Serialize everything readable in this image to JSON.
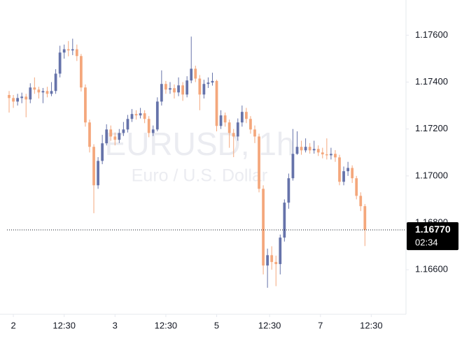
{
  "chart_data": {
    "type": "candlestick",
    "watermark": {
      "symbol": "EURUSD, 1h",
      "description": "Euro / U.S. Dollar"
    },
    "up_color": "#6673aa",
    "down_color": "#f4a77c",
    "open": [
      1.17345,
      1.17332,
      1.17317,
      1.17332,
      1.17338,
      1.17326,
      1.17377,
      1.17368,
      1.17356,
      1.17362,
      1.1735,
      1.17362,
      1.17436,
      1.17526,
      1.1754,
      1.17535,
      1.1754,
      1.17511,
      1.17377,
      1.17228,
      1.17124,
      1.1696,
      1.17064,
      1.17139,
      1.17198,
      1.17168,
      1.17154,
      1.17183,
      1.17198,
      1.17243,
      1.17264,
      1.17258,
      1.17267,
      1.17243,
      1.17183,
      1.17198,
      1.17317,
      1.17392,
      1.17368,
      1.17374,
      1.17356,
      1.17386,
      1.17347,
      1.17407,
      1.17457,
      1.17415,
      1.17347,
      1.17392,
      1.17398,
      1.17405,
      1.17213,
      1.17258,
      1.17228,
      1.17183,
      1.17168,
      1.17228,
      1.17273,
      1.17243,
      1.17198,
      1.17168,
      1.16945,
      1.16618,
      1.16662,
      1.16633,
      1.16624,
      1.16737,
      1.16886,
      1.1699,
      1.17094,
      1.17124,
      1.17109,
      1.17124,
      1.17109,
      1.17115,
      1.171,
      1.17092,
      1.17088,
      1.17094,
      1.17079,
      1.16975,
      1.1702,
      1.17034,
      1.1699,
      1.16915,
      1.16871
    ],
    "high": [
      1.17362,
      1.17345,
      1.1735,
      1.17355,
      1.1735,
      1.17395,
      1.1742,
      1.1738,
      1.17375,
      1.1738,
      1.174,
      1.17455,
      1.17555,
      1.1756,
      1.17575,
      1.17585,
      1.1756,
      1.1752,
      1.1739,
      1.1724,
      1.17135,
      1.1708,
      1.17175,
      1.1722,
      1.17215,
      1.17185,
      1.172,
      1.1723,
      1.1726,
      1.17285,
      1.1728,
      1.1729,
      1.1728,
      1.17255,
      1.17215,
      1.17335,
      1.1745,
      1.17405,
      1.174,
      1.1739,
      1.1742,
      1.174,
      1.17425,
      1.17594,
      1.1747,
      1.1743,
      1.1741,
      1.1742,
      1.1744,
      1.1741,
      1.1728,
      1.1727,
      1.1724,
      1.172,
      1.17245,
      1.173,
      1.1729,
      1.17255,
      1.17215,
      1.1718,
      1.1696,
      1.1669,
      1.167,
      1.1666,
      1.1675,
      1.169,
      1.1701,
      1.172,
      1.1719,
      1.1715,
      1.1716,
      1.1714,
      1.1715,
      1.1713,
      1.1712,
      1.1716,
      1.1712,
      1.1711,
      1.1709,
      1.1704,
      1.1706,
      1.17045,
      1.17,
      1.1693,
      1.1688
    ],
    "low": [
      1.1727,
      1.1729,
      1.173,
      1.1731,
      1.1725,
      1.1731,
      1.1735,
      1.1733,
      1.1731,
      1.17335,
      1.1734,
      1.1735,
      1.1742,
      1.175,
      1.1751,
      1.17515,
      1.1749,
      1.1736,
      1.1721,
      1.171,
      1.16841,
      1.16945,
      1.1705,
      1.1713,
      1.1715,
      1.1713,
      1.1714,
      1.1717,
      1.17185,
      1.1723,
      1.1724,
      1.17245,
      1.17225,
      1.17165,
      1.1717,
      1.1719,
      1.173,
      1.1735,
      1.1735,
      1.1733,
      1.1734,
      1.1732,
      1.17335,
      1.17395,
      1.174,
      1.1728,
      1.1733,
      1.17375,
      1.17385,
      1.1719,
      1.172,
      1.1721,
      1.1712,
      1.1708,
      1.1715,
      1.1721,
      1.17225,
      1.1718,
      1.1714,
      1.1693,
      1.1658,
      1.16523,
      1.166,
      1.1653,
      1.1658,
      1.1672,
      1.1686,
      1.1698,
      1.1709,
      1.1709,
      1.171,
      1.17095,
      1.17095,
      1.17085,
      1.17075,
      1.1707,
      1.1707,
      1.1706,
      1.1696,
      1.1696,
      1.17,
      1.1697,
      1.169,
      1.1685,
      1.16701
    ],
    "close": [
      1.17332,
      1.17317,
      1.17332,
      1.17338,
      1.17326,
      1.17377,
      1.17368,
      1.17356,
      1.17362,
      1.1735,
      1.17362,
      1.17436,
      1.17526,
      1.1754,
      1.17535,
      1.1754,
      1.17511,
      1.17377,
      1.17228,
      1.17124,
      1.1696,
      1.17064,
      1.17139,
      1.17198,
      1.17168,
      1.17154,
      1.17183,
      1.17198,
      1.17243,
      1.17264,
      1.17258,
      1.17267,
      1.17243,
      1.17183,
      1.17198,
      1.17317,
      1.17392,
      1.17368,
      1.17374,
      1.17356,
      1.17386,
      1.17347,
      1.17407,
      1.17457,
      1.17415,
      1.17347,
      1.17392,
      1.17398,
      1.17405,
      1.17213,
      1.17258,
      1.17228,
      1.17183,
      1.17168,
      1.17228,
      1.17273,
      1.17243,
      1.17198,
      1.17168,
      1.16945,
      1.16618,
      1.16662,
      1.16633,
      1.16624,
      1.16737,
      1.16886,
      1.1699,
      1.17094,
      1.17124,
      1.17109,
      1.17124,
      1.17109,
      1.17115,
      1.171,
      1.17092,
      1.17088,
      1.17094,
      1.17079,
      1.16975,
      1.1702,
      1.17034,
      1.1699,
      1.16915,
      1.16871,
      1.1677
    ],
    "xlim": [
      -0.5,
      93.7
    ],
    "xticks": [
      {
        "value": 1,
        "label": "2"
      },
      {
        "value": 13,
        "label": "12:30"
      },
      {
        "value": 25,
        "label": "3"
      },
      {
        "value": 37,
        "label": "12:30"
      },
      {
        "value": 49,
        "label": "5"
      },
      {
        "value": 61.5,
        "label": "12:30"
      },
      {
        "value": 73.5,
        "label": "7"
      },
      {
        "value": 85.5,
        "label": "12:30"
      }
    ],
    "ylim": [
      1.1641,
      1.1775
    ],
    "yticks": [
      {
        "value": 1.166,
        "label": "1.16600"
      },
      {
        "value": 1.168,
        "label": "1.16800"
      },
      {
        "value": 1.17,
        "label": "1.17000"
      },
      {
        "value": 1.172,
        "label": "1.17200"
      },
      {
        "value": 1.174,
        "label": "1.17400"
      },
      {
        "value": 1.176,
        "label": "1.17600"
      }
    ],
    "last_price": {
      "value": 1.1677,
      "label": "1.16770"
    },
    "countdown": "02:34",
    "grid": false
  }
}
